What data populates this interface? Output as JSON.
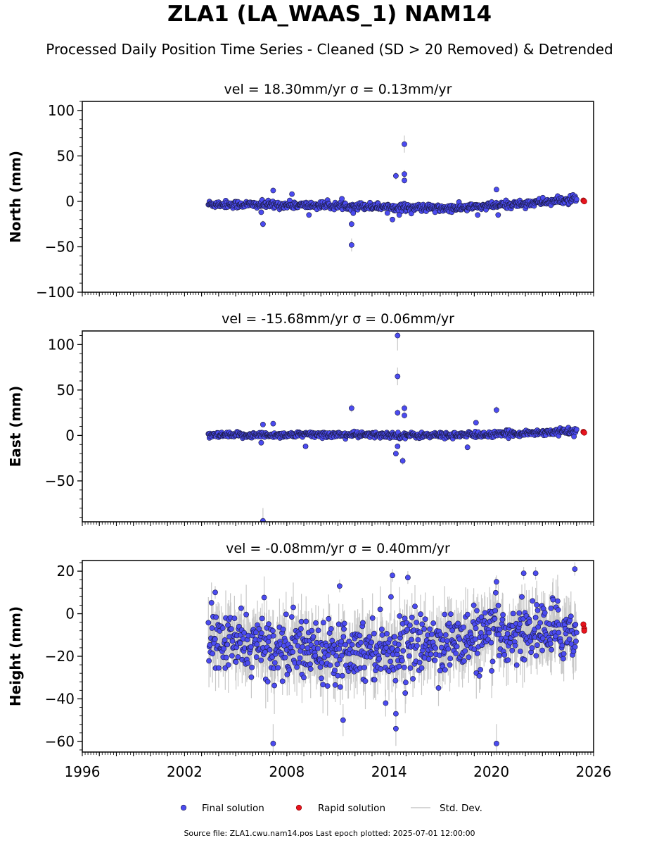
{
  "figure": {
    "title": "ZLA1 (LA_WAAS_1) NAM14",
    "subtitle": "Processed Daily Position Time Series - Cleaned (SD > 20 Removed) & Detrended",
    "footer": "Source file: ZLA1.cwu.nam14.pos  Last epoch plotted: 2025-07-01 12:00:00"
  },
  "colors": {
    "final": "#4b4bf0",
    "final_edge": "#1a1a40",
    "rapid": "#e8141e",
    "std_dev": "#c8c8c8"
  },
  "legend": {
    "placement": "bottom-center",
    "items": [
      "Final solution",
      "Rapid solution",
      "Std. Dev."
    ]
  },
  "chart_data": [
    {
      "type": "scatter",
      "title": "vel = 18.30mm/yr   σ = 0.13mm/yr",
      "ylabel": "North (mm)",
      "xlim": [
        1996,
        2026
      ],
      "ylim": [
        -100,
        110
      ],
      "yticks": [
        -100,
        -50,
        0,
        50,
        100
      ],
      "xticks": [
        1996,
        2002,
        2008,
        2014,
        2020,
        2026
      ],
      "xticklabels_shown": false,
      "series": [
        {
          "name": "Final solution",
          "x_range": [
            2003.4,
            2025.0
          ],
          "trend": [
            [
              2003.4,
              -3
            ],
            [
              2012.0,
              -5
            ],
            [
              2017.5,
              -8
            ],
            [
              2020.0,
              -5
            ],
            [
              2025.0,
              2
            ]
          ],
          "scatter_sd": 2,
          "outliers": [
            [
              2006.6,
              -25
            ],
            [
              2006.5,
              -12
            ],
            [
              2007.2,
              12
            ],
            [
              2011.8,
              -48
            ],
            [
              2011.8,
              -25
            ],
            [
              2011.9,
              -13
            ],
            [
              2014.4,
              28
            ],
            [
              2014.9,
              63
            ],
            [
              2014.9,
              30
            ],
            [
              2014.9,
              23
            ],
            [
              2014.2,
              -20
            ],
            [
              2014.6,
              -15
            ],
            [
              2020.3,
              13
            ],
            [
              2020.4,
              -15
            ],
            [
              2019.2,
              -15
            ],
            [
              2016.7,
              -12
            ],
            [
              2009.3,
              -15
            ],
            [
              2008.3,
              8
            ]
          ]
        },
        {
          "name": "Rapid solution",
          "points": [
            [
              2025.4,
              1
            ],
            [
              2025.45,
              0
            ]
          ]
        }
      ]
    },
    {
      "type": "scatter",
      "title": "vel = -15.68mm/yr   σ = 0.06mm/yr",
      "ylabel": "East (mm)",
      "xlim": [
        1996,
        2026
      ],
      "ylim": [
        -95,
        115
      ],
      "yticks": [
        -50,
        0,
        50,
        100
      ],
      "xticks": [
        1996,
        2002,
        2008,
        2014,
        2020,
        2026
      ],
      "xticklabels_shown": false,
      "series": [
        {
          "name": "Final solution",
          "x_range": [
            2003.4,
            2025.0
          ],
          "trend": [
            [
              2003.4,
              0
            ],
            [
              2010.0,
              1
            ],
            [
              2016.0,
              0
            ],
            [
              2020.0,
              1
            ],
            [
              2025.0,
              5
            ]
          ],
          "scatter_sd": 1.6,
          "outliers": [
            [
              2006.6,
              12
            ],
            [
              2006.5,
              -8
            ],
            [
              2006.6,
              -94
            ],
            [
              2007.2,
              13
            ],
            [
              2011.8,
              30
            ],
            [
              2014.5,
              110
            ],
            [
              2014.5,
              65
            ],
            [
              2014.5,
              25
            ],
            [
              2014.9,
              30
            ],
            [
              2014.9,
              22
            ],
            [
              2014.4,
              -20
            ],
            [
              2014.8,
              -28
            ],
            [
              2014.5,
              -12
            ],
            [
              2020.3,
              28
            ],
            [
              2019.1,
              14
            ],
            [
              2018.6,
              -13
            ],
            [
              2009.1,
              -12
            ]
          ]
        },
        {
          "name": "Rapid solution",
          "points": [
            [
              2025.4,
              4
            ],
            [
              2025.45,
              3
            ]
          ]
        }
      ]
    },
    {
      "type": "scatter",
      "title": "vel = -0.08mm/yr   σ = 0.40mm/yr",
      "ylabel": "Height (mm)",
      "xlim": [
        1996,
        2026
      ],
      "ylim": [
        -65,
        25
      ],
      "yticks": [
        -60,
        -40,
        -20,
        0,
        20
      ],
      "xticks": [
        1996,
        2002,
        2008,
        2014,
        2020,
        2026
      ],
      "xticklabels_shown": true,
      "series": [
        {
          "name": "Final solution",
          "x_range": [
            2003.4,
            2025.0
          ],
          "trend": [
            [
              2003.4,
              -13
            ],
            [
              2008.0,
              -16
            ],
            [
              2014.0,
              -16
            ],
            [
              2018.0,
              -13
            ],
            [
              2022.0,
              -8
            ],
            [
              2025.0,
              -8
            ]
          ],
          "scatter_sd": 7,
          "outliers": [
            [
              2003.8,
              10
            ],
            [
              2007.2,
              -61
            ],
            [
              2011.1,
              13
            ],
            [
              2011.3,
              -50
            ],
            [
              2014.2,
              18
            ],
            [
              2014.4,
              -47
            ],
            [
              2014.4,
              -54
            ],
            [
              2015.1,
              17
            ],
            [
              2020.3,
              -61
            ],
            [
              2020.3,
              15
            ],
            [
              2021.9,
              19
            ],
            [
              2022.6,
              19
            ],
            [
              2024.9,
              21
            ],
            [
              2013.8,
              -42
            ],
            [
              2009.0,
              -30
            ]
          ]
        },
        {
          "name": "Rapid solution",
          "points": [
            [
              2025.4,
              -5
            ],
            [
              2025.45,
              -7
            ],
            [
              2025.45,
              -8
            ]
          ]
        }
      ]
    }
  ]
}
